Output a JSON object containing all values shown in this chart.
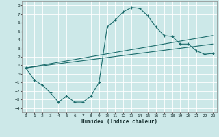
{
  "title": "",
  "xlabel": "Humidex (Indice chaleur)",
  "bg_color": "#cce8e8",
  "line_color": "#1a6b6b",
  "grid_color": "#ffffff",
  "xlim": [
    -0.5,
    23.5
  ],
  "ylim": [
    -4.5,
    8.5
  ],
  "xticks": [
    0,
    1,
    2,
    3,
    4,
    5,
    6,
    7,
    8,
    9,
    10,
    11,
    12,
    13,
    14,
    15,
    16,
    17,
    18,
    19,
    20,
    21,
    22,
    23
  ],
  "yticks": [
    -4,
    -3,
    -2,
    -1,
    0,
    1,
    2,
    3,
    4,
    5,
    6,
    7,
    8
  ],
  "main_x": [
    0,
    1,
    2,
    3,
    4,
    5,
    6,
    7,
    8,
    9,
    10,
    11,
    12,
    13,
    14,
    15,
    16,
    17,
    18,
    19,
    20,
    21,
    22,
    23
  ],
  "main_y": [
    0.7,
    -0.7,
    -1.3,
    -2.2,
    -3.3,
    -2.6,
    -3.3,
    -3.3,
    -2.6,
    -1.0,
    5.5,
    6.3,
    7.3,
    7.8,
    7.7,
    6.8,
    5.5,
    4.5,
    4.4,
    3.5,
    3.5,
    2.7,
    2.3,
    2.4
  ],
  "trend1_x": [
    0,
    23
  ],
  "trend1_y": [
    0.7,
    3.5
  ],
  "trend2_x": [
    0,
    23
  ],
  "trend2_y": [
    0.7,
    4.5
  ],
  "figsize": [
    3.2,
    2.0
  ],
  "dpi": 100
}
